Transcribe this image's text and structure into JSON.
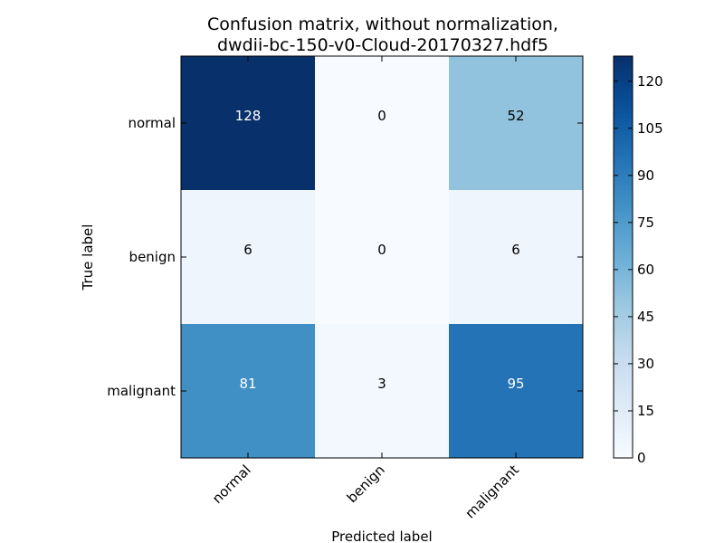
{
  "chart_data": {
    "type": "heatmap",
    "title": "Confusion matrix, without normalization,\ndwdii-bc-150-v0-Cloud-20170327.hdf5",
    "title_lines": [
      "Confusion matrix, without normalization,",
      "dwdii-bc-150-v0-Cloud-20170327.hdf5"
    ],
    "xlabel": "Predicted label",
    "ylabel": "True label",
    "x_categories": [
      "normal",
      "benign",
      "malignant"
    ],
    "y_categories": [
      "normal",
      "benign",
      "malignant"
    ],
    "values": [
      [
        128,
        0,
        52
      ],
      [
        6,
        0,
        6
      ],
      [
        81,
        3,
        95
      ]
    ],
    "colorbar": {
      "colormap": "Blues",
      "range": [
        0,
        128
      ],
      "ticks": [
        0,
        15,
        30,
        45,
        60,
        75,
        90,
        105,
        120
      ]
    }
  }
}
